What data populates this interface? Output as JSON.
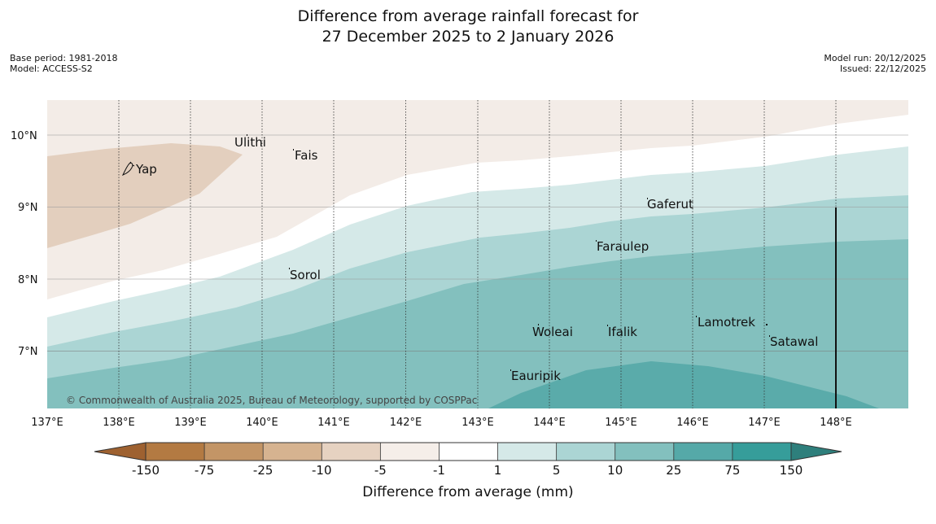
{
  "title": {
    "line1": "Difference from average rainfall forecast for",
    "line2": "27 December 2025 to 2 January 2026"
  },
  "meta_left": {
    "base_period": "Base period: 1981-2018",
    "model": "Model: ACCESS-S2"
  },
  "meta_right": {
    "model_run": "Model run: 20/12/2025",
    "issued": "Issued: 22/12/2025"
  },
  "map": {
    "lon_range": [
      137,
      149
    ],
    "lat_range": [
      6.2,
      10.5
    ],
    "lon_labels": [
      "137°E",
      "138°E",
      "139°E",
      "140°E",
      "141°E",
      "142°E",
      "143°E",
      "144°E",
      "145°E",
      "146°E",
      "147°E",
      "148°E"
    ],
    "lat_labels": [
      "10°N",
      "9°N",
      "8°N",
      "7°N"
    ],
    "places": [
      {
        "name": "Ulithi",
        "lon": 139.67,
        "lat": 9.9
      },
      {
        "name": "Fais",
        "lon": 140.45,
        "lat": 9.75
      },
      {
        "name": "Yap",
        "lon": 138.1,
        "lat": 9.53
      },
      {
        "name": "Gaferut",
        "lon": 145.38,
        "lat": 9.05
      },
      {
        "name": "Faraulep",
        "lon": 144.66,
        "lat": 8.47
      },
      {
        "name": "Sorol",
        "lon": 140.4,
        "lat": 8.07
      },
      {
        "name": "Woleai",
        "lon": 143.9,
        "lat": 7.3
      },
      {
        "name": "Ifalik",
        "lon": 144.45,
        "lat": 7.28
      },
      {
        "name": "Lamotrek",
        "lon": 146.0,
        "lat": 7.43
      },
      {
        "name": "Satawal",
        "lon": 147.03,
        "lat": 7.14
      },
      {
        "name": "Eauripik",
        "lon": 143.44,
        "lat": 6.67
      }
    ],
    "copyright": "© Commonwealth of Australia 2025, Bureau of Meteorology, supported by COSPPac"
  },
  "colorbar": {
    "label": "Difference from average (mm)",
    "ticks": [
      "-150",
      "-75",
      "-25",
      "-10",
      "-5",
      "-1",
      "1",
      "5",
      "10",
      "25",
      "75",
      "150"
    ],
    "colors": [
      "#9e6130",
      "#b37a42",
      "#c39566",
      "#d6b390",
      "#e6d2c1",
      "#f5eee9",
      "#ffffff",
      "#d5e9e8",
      "#abd5d4",
      "#83c0be",
      "#55a9a8",
      "#369d9a",
      "#2e7f7c"
    ]
  }
}
